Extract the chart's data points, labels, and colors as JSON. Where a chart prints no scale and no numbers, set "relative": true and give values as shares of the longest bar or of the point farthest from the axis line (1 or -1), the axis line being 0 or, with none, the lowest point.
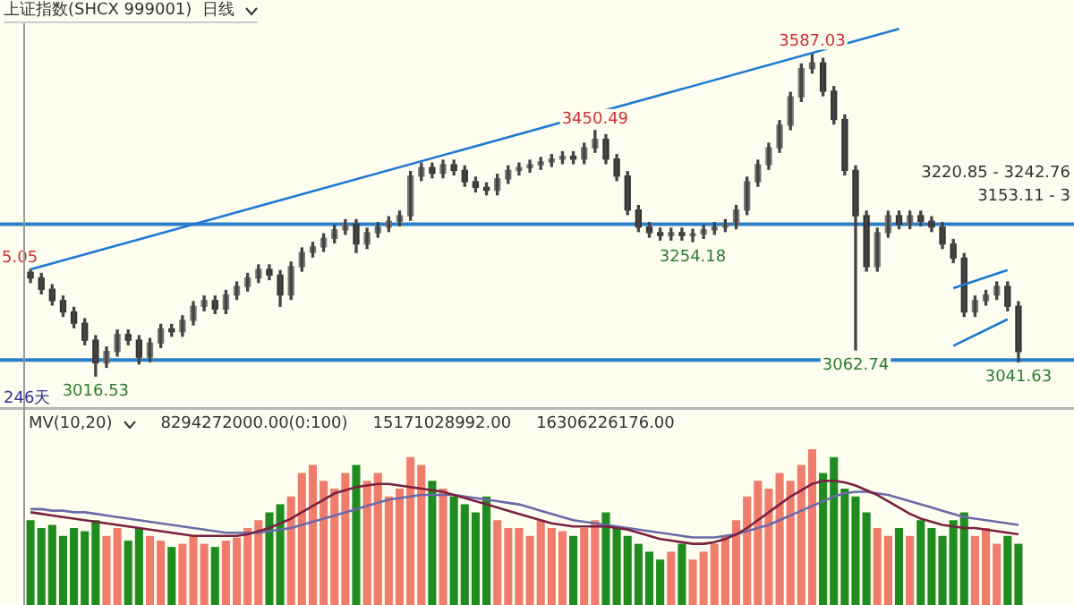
{
  "chart_data": [
    {
      "type": "candlestick",
      "title": "上证指数(SHCX 999001)",
      "subtitle": "日线",
      "categories": [
        null,
        null,
        null,
        null,
        null,
        null,
        null,
        null,
        null,
        null,
        null,
        null,
        null,
        null,
        null,
        null,
        null,
        null,
        null,
        null,
        null,
        null,
        null,
        null,
        null,
        null,
        null,
        null,
        null,
        null,
        null,
        null,
        null,
        null,
        null,
        null,
        null,
        null,
        null,
        null,
        null,
        null,
        null,
        null,
        null,
        null,
        null,
        null,
        null,
        null,
        null,
        null,
        null,
        null,
        null,
        null,
        null,
        null,
        null,
        null,
        null,
        null,
        null,
        null,
        null,
        null,
        null,
        null,
        null,
        null,
        null,
        null,
        null,
        null,
        null,
        null,
        null,
        null,
        null,
        null,
        null,
        null,
        null,
        null,
        null,
        null,
        null,
        null,
        null,
        null,
        null,
        null
      ],
      "ohlc": [
        [
          3200,
          3205.05,
          3182,
          3190
        ],
        [
          3190,
          3198,
          3162,
          3170
        ],
        [
          3170,
          3178,
          3142,
          3150
        ],
        [
          3150,
          3158,
          3122,
          3130
        ],
        [
          3130,
          3138,
          3102,
          3110
        ],
        [
          3110,
          3118,
          3072,
          3080
        ],
        [
          3080,
          3088,
          3016.53,
          3040
        ],
        [
          3040,
          3068,
          3032,
          3060
        ],
        [
          3060,
          3098,
          3052,
          3090
        ],
        [
          3090,
          3098,
          3072,
          3080
        ],
        [
          3080,
          3088,
          3038,
          3050
        ],
        [
          3050,
          3083,
          3042,
          3075
        ],
        [
          3075,
          3108,
          3067,
          3100
        ],
        [
          3100,
          3108,
          3087,
          3095
        ],
        [
          3095,
          3123,
          3087,
          3115
        ],
        [
          3115,
          3148,
          3107,
          3140
        ],
        [
          3140,
          3158,
          3132,
          3150
        ],
        [
          3150,
          3158,
          3127,
          3135
        ],
        [
          3135,
          3168,
          3127,
          3160
        ],
        [
          3160,
          3183,
          3152,
          3175
        ],
        [
          3175,
          3198,
          3167,
          3190
        ],
        [
          3190,
          3213,
          3182,
          3205
        ],
        [
          3205,
          3213,
          3187,
          3195
        ],
        [
          3195,
          3203,
          3140,
          3160
        ],
        [
          3160,
          3218,
          3152,
          3210
        ],
        [
          3210,
          3243,
          3202,
          3235
        ],
        [
          3235,
          3253,
          3227,
          3245
        ],
        [
          3245,
          3268,
          3237,
          3260
        ],
        [
          3260,
          3283,
          3252,
          3275
        ],
        [
          3275,
          3293,
          3267,
          3285
        ],
        [
          3285,
          3293,
          3235,
          3250
        ],
        [
          3250,
          3278,
          3242,
          3270
        ],
        [
          3270,
          3288,
          3262,
          3280
        ],
        [
          3280,
          3298,
          3272,
          3290
        ],
        [
          3290,
          3308,
          3282,
          3300
        ],
        [
          3300,
          3378,
          3292,
          3370
        ],
        [
          3370,
          3393,
          3362,
          3385
        ],
        [
          3385,
          3393,
          3367,
          3375
        ],
        [
          3375,
          3398,
          3367,
          3390
        ],
        [
          3390,
          3398,
          3372,
          3380
        ],
        [
          3380,
          3388,
          3352,
          3360
        ],
        [
          3360,
          3368,
          3342,
          3350
        ],
        [
          3350,
          3358,
          3337,
          3345
        ],
        [
          3345,
          3373,
          3337,
          3365
        ],
        [
          3365,
          3388,
          3357,
          3380
        ],
        [
          3380,
          3393,
          3372,
          3385
        ],
        [
          3385,
          3398,
          3377,
          3390
        ],
        [
          3390,
          3403,
          3382,
          3395
        ],
        [
          3395,
          3408,
          3387,
          3400
        ],
        [
          3400,
          3413,
          3392,
          3405
        ],
        [
          3405,
          3413,
          3392,
          3400
        ],
        [
          3400,
          3428,
          3392,
          3420
        ],
        [
          3420,
          3450.49,
          3412,
          3435
        ],
        [
          3435,
          3443,
          3392,
          3400
        ],
        [
          3400,
          3408,
          3362,
          3370
        ],
        [
          3370,
          3378,
          3302,
          3310
        ],
        [
          3310,
          3318,
          3272,
          3280
        ],
        [
          3280,
          3288,
          3262,
          3270
        ],
        [
          3270,
          3278,
          3257,
          3265
        ],
        [
          3265,
          3278,
          3257,
          3270
        ],
        [
          3270,
          3278,
          3257,
          3265
        ],
        [
          3265,
          3276,
          3254.18,
          3268
        ],
        [
          3268,
          3283,
          3260,
          3275
        ],
        [
          3275,
          3288,
          3267,
          3280
        ],
        [
          3280,
          3293,
          3272,
          3285
        ],
        [
          3285,
          3318,
          3277,
          3310
        ],
        [
          3310,
          3368,
          3302,
          3360
        ],
        [
          3360,
          3398,
          3352,
          3390
        ],
        [
          3390,
          3428,
          3382,
          3420
        ],
        [
          3420,
          3468,
          3412,
          3460
        ],
        [
          3460,
          3518,
          3452,
          3510
        ],
        [
          3510,
          3568,
          3502,
          3560
        ],
        [
          3560,
          3587.03,
          3552,
          3570
        ],
        [
          3570,
          3578,
          3512,
          3520
        ],
        [
          3520,
          3528,
          3462,
          3470
        ],
        [
          3470,
          3478,
          3372,
          3380
        ],
        [
          3380,
          3388,
          3062.74,
          3300
        ],
        [
          3300,
          3308,
          3202,
          3210
        ],
        [
          3210,
          3278,
          3202,
          3270
        ],
        [
          3270,
          3308,
          3262,
          3300
        ],
        [
          3300,
          3308,
          3277,
          3285
        ],
        [
          3285,
          3308,
          3277,
          3300
        ],
        [
          3300,
          3308,
          3282,
          3290
        ],
        [
          3290,
          3298,
          3272,
          3280
        ],
        [
          3280,
          3288,
          3242,
          3250
        ],
        [
          3250,
          3258,
          3217,
          3225
        ],
        [
          3225,
          3233,
          3122,
          3130
        ],
        [
          3130,
          3158,
          3122,
          3150
        ],
        [
          3150,
          3168,
          3142,
          3160
        ],
        [
          3160,
          3183,
          3152,
          3175
        ],
        [
          3175,
          3183,
          3132,
          3140
        ],
        [
          3140,
          3148,
          3041.63,
          3060
        ]
      ],
      "series": [
        {
          "type": "line",
          "color": "#1e78d2",
          "values": [
            3205,
            null,
            null,
            null,
            null,
            null,
            null,
            null,
            null,
            null,
            null,
            null,
            null,
            null,
            null,
            null,
            null,
            null,
            null,
            null,
            null,
            null,
            null,
            null,
            null,
            null,
            null,
            null,
            null,
            null,
            null,
            null,
            null,
            null,
            null,
            null,
            null,
            null,
            null,
            null,
            null,
            null,
            null,
            null,
            null,
            null,
            null,
            null,
            null,
            null,
            null,
            null,
            null,
            null,
            null,
            null,
            null,
            null,
            null,
            null,
            null,
            null,
            null,
            null,
            null,
            null,
            null,
            null,
            null,
            null,
            null,
            null,
            null,
            null,
            null,
            null,
            null,
            null,
            null,
            null,
            3630,
            null,
            null,
            null,
            null,
            null,
            null,
            null,
            null,
            null,
            null,
            null
          ]
        },
        {
          "type": "line",
          "color": "#1e78d2",
          "values": [
            null,
            null,
            null,
            null,
            null,
            null,
            null,
            null,
            null,
            null,
            null,
            null,
            null,
            null,
            null,
            null,
            null,
            null,
            null,
            null,
            null,
            null,
            null,
            null,
            null,
            null,
            null,
            null,
            null,
            null,
            null,
            null,
            null,
            null,
            null,
            null,
            null,
            null,
            null,
            null,
            null,
            null,
            null,
            null,
            null,
            null,
            null,
            null,
            null,
            null,
            null,
            null,
            null,
            null,
            null,
            null,
            null,
            null,
            null,
            null,
            null,
            null,
            null,
            null,
            null,
            null,
            null,
            null,
            null,
            null,
            null,
            null,
            null,
            null,
            null,
            null,
            null,
            null,
            null,
            null,
            null,
            null,
            null,
            null,
            null,
            3172,
            null,
            null,
            null,
            null,
            3204,
            null
          ]
        },
        {
          "type": "line",
          "color": "#1e78d2",
          "values": [
            null,
            null,
            null,
            null,
            null,
            null,
            null,
            null,
            null,
            null,
            null,
            null,
            null,
            null,
            null,
            null,
            null,
            null,
            null,
            null,
            null,
            null,
            null,
            null,
            null,
            null,
            null,
            null,
            null,
            null,
            null,
            null,
            null,
            null,
            null,
            null,
            null,
            null,
            null,
            null,
            null,
            null,
            null,
            null,
            null,
            null,
            null,
            null,
            null,
            null,
            null,
            null,
            null,
            null,
            null,
            null,
            null,
            null,
            null,
            null,
            null,
            null,
            null,
            null,
            null,
            null,
            null,
            null,
            null,
            null,
            null,
            null,
            null,
            null,
            null,
            null,
            null,
            null,
            null,
            null,
            null,
            null,
            null,
            null,
            null,
            3070,
            null,
            null,
            null,
            null,
            3117,
            null
          ]
        }
      ],
      "ref_lines": [
        {
          "axis": "y",
          "value": 3285,
          "color": "#2a7fc8"
        },
        {
          "axis": "y",
          "value": 3045,
          "color": "#2a7fc8"
        }
      ],
      "annotations": [
        {
          "text": "5.05",
          "y": 3205.05
        },
        {
          "text": "3016.53",
          "y": 3016.53
        },
        {
          "text": "3450.49",
          "y": 3450.49
        },
        {
          "text": "3587.03",
          "y": 3587.03
        },
        {
          "text": "3254.18",
          "y": 3254.18
        },
        {
          "text": "3062.74",
          "y": 3062.74
        },
        {
          "text": "3041.63",
          "y": 3041.63
        },
        "3220.85 - 3242.76",
        "3153.11 - 3",
        "246天"
      ],
      "ylim": [
        2960,
        3640
      ]
    },
    {
      "type": "bar",
      "title": "MV(10,20)",
      "relative": true,
      "categories": [
        null,
        null,
        null,
        null,
        null,
        null,
        null,
        null,
        null,
        null,
        null,
        null,
        null,
        null,
        null,
        null,
        null,
        null,
        null,
        null,
        null,
        null,
        null,
        null,
        null,
        null,
        null,
        null,
        null,
        null,
        null,
        null,
        null,
        null,
        null,
        null,
        null,
        null,
        null,
        null,
        null,
        null,
        null,
        null,
        null,
        null,
        null,
        null,
        null,
        null,
        null,
        null,
        null,
        null,
        null,
        null,
        null,
        null,
        null,
        null,
        null,
        null,
        null,
        null,
        null,
        null,
        null,
        null,
        null,
        null,
        null,
        null,
        null,
        null,
        null,
        null,
        null,
        null,
        null,
        null,
        null,
        null,
        null,
        null,
        null,
        null,
        null,
        null,
        null,
        null,
        null,
        null
      ],
      "series": [
        {
          "type": "bar",
          "values": [
            0.55,
            0.5,
            0.52,
            0.45,
            0.5,
            0.48,
            0.55,
            0.45,
            0.5,
            0.42,
            0.5,
            0.45,
            0.42,
            0.38,
            0.4,
            0.45,
            0.4,
            0.38,
            0.42,
            0.44,
            0.5,
            0.55,
            0.6,
            0.65,
            0.7,
            0.85,
            0.9,
            0.8,
            0.75,
            0.85,
            0.9,
            0.8,
            0.85,
            0.7,
            0.75,
            0.95,
            0.9,
            0.8,
            0.75,
            0.7,
            0.65,
            0.6,
            0.7,
            0.55,
            0.5,
            0.5,
            0.45,
            0.55,
            0.5,
            0.48,
            0.45,
            0.5,
            0.55,
            0.6,
            0.5,
            0.45,
            0.4,
            0.35,
            0.3,
            0.35,
            0.4,
            0.3,
            0.35,
            0.4,
            0.45,
            0.55,
            0.7,
            0.8,
            0.75,
            0.85,
            0.8,
            0.9,
            1,
            0.85,
            0.95,
            0.75,
            0.7,
            0.6,
            0.5,
            0.45,
            0.5,
            0.45,
            0.55,
            0.5,
            0.45,
            0.55,
            0.6,
            0.45,
            0.5,
            0.4,
            0.45,
            0.4
          ],
          "colors": [
            "#1e8c1e",
            "#1e8c1e",
            "#1e8c1e",
            "#1e8c1e",
            "#1e8c1e",
            "#1e8c1e",
            "#1e8c1e",
            "#f07c6c",
            "#f07c6c",
            "#1e8c1e",
            "#1e8c1e",
            "#f07c6c",
            "#f07c6c",
            "#1e8c1e",
            "#f07c6c",
            "#f07c6c",
            "#f07c6c",
            "#1e8c1e",
            "#f07c6c",
            "#f07c6c",
            "#f07c6c",
            "#f07c6c",
            "#1e8c1e",
            "#1e8c1e",
            "#f07c6c",
            "#f07c6c",
            "#f07c6c",
            "#f07c6c",
            "#f07c6c",
            "#f07c6c",
            "#1e8c1e",
            "#f07c6c",
            "#f07c6c",
            "#f07c6c",
            "#f07c6c",
            "#f07c6c",
            "#f07c6c",
            "#1e8c1e",
            "#f07c6c",
            "#1e8c1e",
            "#1e8c1e",
            "#1e8c1e",
            "#1e8c1e",
            "#f07c6c",
            "#f07c6c",
            "#f07c6c",
            "#f07c6c",
            "#f07c6c",
            "#f07c6c",
            "#f07c6c",
            "#1e8c1e",
            "#f07c6c",
            "#f07c6c",
            "#1e8c1e",
            "#1e8c1e",
            "#1e8c1e",
            "#1e8c1e",
            "#1e8c1e",
            "#1e8c1e",
            "#f07c6c",
            "#1e8c1e",
            "#f07c6c",
            "#f07c6c",
            "#f07c6c",
            "#f07c6c",
            "#f07c6c",
            "#f07c6c",
            "#f07c6c",
            "#f07c6c",
            "#f07c6c",
            "#f07c6c",
            "#f07c6c",
            "#f07c6c",
            "#1e8c1e",
            "#1e8c1e",
            "#1e8c1e",
            "#1e8c1e",
            "#1e8c1e",
            "#f07c6c",
            "#f07c6c",
            "#1e8c1e",
            "#f07c6c",
            "#1e8c1e",
            "#1e8c1e",
            "#1e8c1e",
            "#1e8c1e",
            "#1e8c1e",
            "#f07c6c",
            "#f07c6c",
            "#f07c6c",
            "#1e8c1e",
            "#1e8c1e"
          ]
        },
        {
          "type": "line",
          "color": "#7a2040",
          "values": [
            0.6,
            0.59,
            0.58,
            0.57,
            0.56,
            0.55,
            0.54,
            0.53,
            0.52,
            0.51,
            0.5,
            0.49,
            0.48,
            0.47,
            0.46,
            0.45,
            0.45,
            0.45,
            0.45,
            0.45,
            0.46,
            0.48,
            0.5,
            0.53,
            0.56,
            0.6,
            0.64,
            0.68,
            0.72,
            0.74,
            0.76,
            0.77,
            0.78,
            0.78,
            0.77,
            0.76,
            0.75,
            0.74,
            0.73,
            0.71,
            0.69,
            0.67,
            0.65,
            0.63,
            0.61,
            0.59,
            0.57,
            0.55,
            0.53,
            0.52,
            0.51,
            0.51,
            0.51,
            0.51,
            0.5,
            0.49,
            0.47,
            0.45,
            0.43,
            0.42,
            0.41,
            0.4,
            0.4,
            0.41,
            0.43,
            0.46,
            0.5,
            0.55,
            0.6,
            0.65,
            0.7,
            0.74,
            0.78,
            0.8,
            0.8,
            0.79,
            0.77,
            0.74,
            0.71,
            0.67,
            0.63,
            0.59,
            0.56,
            0.54,
            0.52,
            0.51,
            0.5,
            0.5,
            0.49,
            0.48,
            0.47,
            0.46
          ]
        },
        {
          "type": "line",
          "color": "#6a6aa8",
          "values": [
            0.62,
            0.62,
            0.61,
            0.61,
            0.6,
            0.6,
            0.59,
            0.58,
            0.57,
            0.56,
            0.55,
            0.54,
            0.53,
            0.52,
            0.51,
            0.5,
            0.49,
            0.48,
            0.47,
            0.47,
            0.47,
            0.47,
            0.48,
            0.49,
            0.5,
            0.52,
            0.54,
            0.56,
            0.58,
            0.6,
            0.62,
            0.64,
            0.66,
            0.68,
            0.69,
            0.7,
            0.71,
            0.71,
            0.71,
            0.71,
            0.7,
            0.69,
            0.68,
            0.67,
            0.66,
            0.65,
            0.63,
            0.61,
            0.59,
            0.57,
            0.55,
            0.54,
            0.53,
            0.52,
            0.51,
            0.5,
            0.49,
            0.48,
            0.47,
            0.46,
            0.45,
            0.44,
            0.44,
            0.44,
            0.45,
            0.46,
            0.48,
            0.5,
            0.52,
            0.55,
            0.58,
            0.61,
            0.64,
            0.67,
            0.7,
            0.72,
            0.73,
            0.73,
            0.72,
            0.71,
            0.69,
            0.67,
            0.65,
            0.63,
            0.61,
            0.59,
            0.57,
            0.56,
            0.55,
            0.54,
            0.53,
            0.52
          ]
        }
      ],
      "annotations": [
        "8294272000.00(0:100)",
        "15171028992.00",
        "16306226176.00"
      ]
    }
  ]
}
